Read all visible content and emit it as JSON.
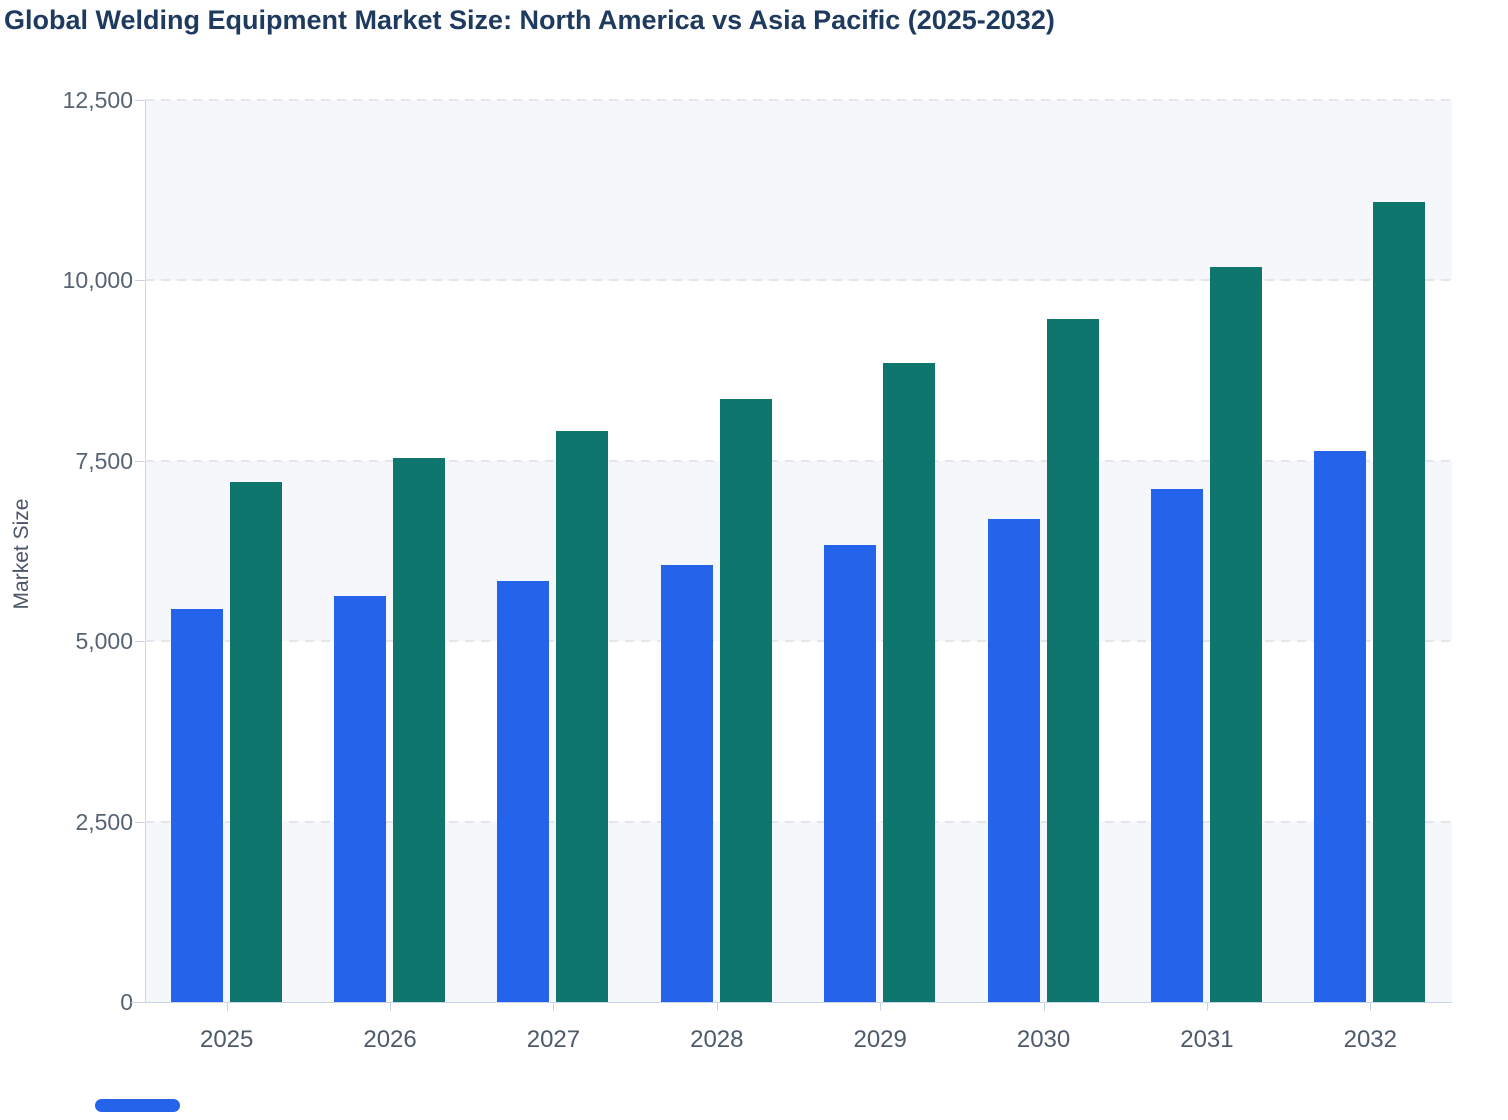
{
  "title": "Global Welding Equipment Market Size: North America vs Asia Pacific (2025-2032)",
  "chart_data": {
    "type": "bar",
    "title": "Global Welding Equipment Market Size: North America vs Asia Pacific (2025-2032)",
    "xlabel": "",
    "ylabel": "Market Size",
    "categories": [
      "2025",
      "2026",
      "2027",
      "2028",
      "2029",
      "2030",
      "2031",
      "2032"
    ],
    "series": [
      {
        "name": "North America",
        "color": "#2563eb",
        "values": [
          5450,
          5620,
          5830,
          6060,
          6340,
          6690,
          7110,
          7640
        ]
      },
      {
        "name": "Asia Pacific",
        "color": "#0f766e",
        "values": [
          7210,
          7540,
          7910,
          8350,
          8850,
          9460,
          10190,
          11080
        ]
      }
    ],
    "ylim": [
      0,
      12500
    ],
    "ytick_interval": 2500,
    "ytick_labels": [
      "0",
      "2,500",
      "5,000",
      "7,500",
      "10,000",
      "12,500"
    ],
    "grid": "horizontal-dashed",
    "plot_bands": "alternating horizontal zebra stripes",
    "legend_position": "none-visible"
  },
  "legend": {
    "swatch_color": "#2563eb"
  },
  "colors": {
    "background": "#ffffff",
    "band_fill": "#f5f7fa",
    "gridline": "#e3e7ec",
    "axis_line": "#c8d4ec",
    "title_text": "#1e3a5e",
    "y_tick_text": "#566373",
    "x_tick_text": "#4d5a6b",
    "y_axis_title_text": "#4a5568"
  }
}
